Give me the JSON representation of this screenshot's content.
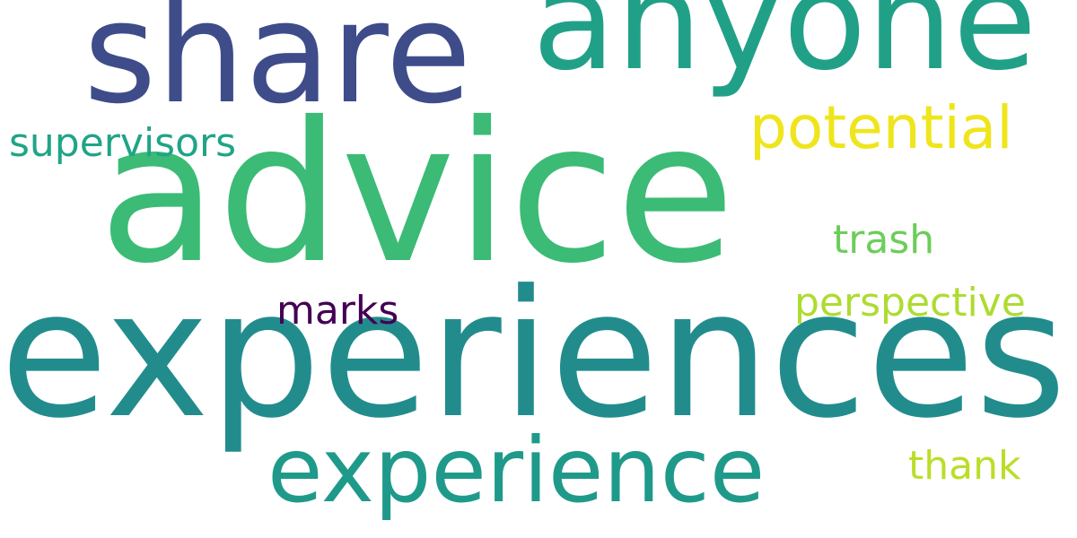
{
  "words": [
    {
      "text": "advice",
      "color": "#3bbb75"
    },
    {
      "text": "experiences",
      "color": "#228c8d"
    },
    {
      "text": "share",
      "color": "#3e4c8a"
    },
    {
      "text": "anyone",
      "color": "#21a088"
    },
    {
      "text": "experience",
      "color": "#1f9a8a"
    },
    {
      "text": "potential",
      "color": "#efe51c"
    },
    {
      "text": "supervisors",
      "color": "#20a486"
    },
    {
      "text": "perspective",
      "color": "#addc30"
    },
    {
      "text": "trash",
      "color": "#6ccd5a"
    },
    {
      "text": "marks",
      "color": "#440154"
    },
    {
      "text": "thank",
      "color": "#bade28"
    }
  ]
}
